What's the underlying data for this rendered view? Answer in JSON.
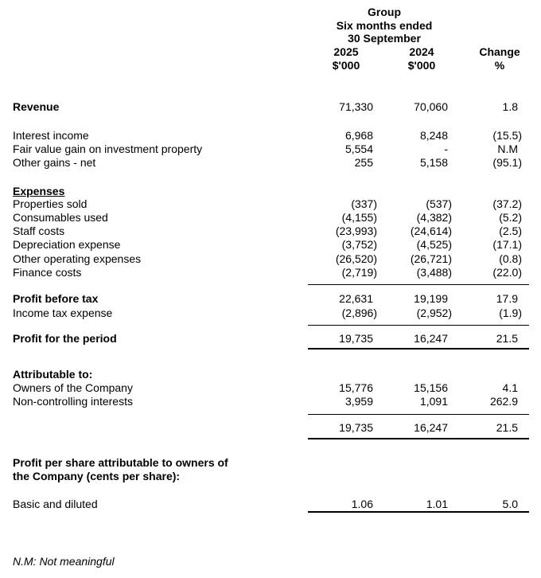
{
  "header": {
    "group": "Group",
    "period": "Six months ended",
    "date": "30 September",
    "col_2025": "2025",
    "col_2024": "2024",
    "unit_2025": "$'000",
    "unit_2024": "$'000",
    "change": "Change",
    "change_unit": "%"
  },
  "rows": [
    {
      "label": "Revenue",
      "bold": true,
      "v2025": "71,330",
      "v2024": "70,060",
      "change": "1.8"
    },
    {
      "label": "Interest income",
      "v2025": "6,968",
      "v2024": "8,248",
      "change": "(15.5)"
    },
    {
      "label": "Fair value gain on investment property",
      "v2025": "5,554",
      "v2024": "-",
      "change": "N.M"
    },
    {
      "label": "Other gains - net",
      "v2025": "255",
      "v2024": "5,158",
      "change": "(95.1)"
    },
    {
      "label": "Expenses",
      "bold": true,
      "underline": true
    },
    {
      "label": "Properties sold",
      "v2025": "(337)",
      "v2024": "(537)",
      "change": "(37.2)"
    },
    {
      "label": "Consumables used",
      "v2025": "(4,155)",
      "v2024": "(4,382)",
      "change": "(5.2)"
    },
    {
      "label": "Staff costs",
      "v2025": "(23,993)",
      "v2024": "(24,614)",
      "change": "(2.5)"
    },
    {
      "label": "Depreciation expense",
      "v2025": "(3,752)",
      "v2024": "(4,525)",
      "change": "(17.1)"
    },
    {
      "label": "Other operating expenses",
      "v2025": "(26,520)",
      "v2024": "(26,721)",
      "change": "(0.8)"
    },
    {
      "label": "Finance costs",
      "v2025": "(2,719)",
      "v2024": "(3,488)",
      "change": "(22.0)"
    },
    {
      "label": "Profit before tax",
      "bold": true,
      "v2025": "22,631",
      "v2024": "19,199",
      "change": "17.9"
    },
    {
      "label": "Income tax expense",
      "v2025": "(2,896)",
      "v2024": "(2,952)",
      "change": "(1.9)"
    },
    {
      "label": "Profit for the period",
      "bold": true,
      "v2025": "19,735",
      "v2024": "16,247",
      "change": "21.5"
    },
    {
      "label": "Attributable to:",
      "bold": true
    },
    {
      "label": "Owners of the Company",
      "v2025": "15,776",
      "v2024": "15,156",
      "change": "4.1"
    },
    {
      "label": "Non-controlling interests",
      "v2025": "3,959",
      "v2024": "1,091",
      "change": "262.9"
    },
    {
      "label": "",
      "v2025": "19,735",
      "v2024": "16,247",
      "change": "21.5"
    },
    {
      "label": "Profit per share attributable to owners of",
      "bold": true
    },
    {
      "label": " the Company (cents per share):",
      "bold": true
    },
    {
      "label": "Basic and diluted",
      "v2025": "1.06",
      "v2024": "1.01",
      "change": "5.0"
    }
  ],
  "footnote": "N.M: Not meaningful"
}
